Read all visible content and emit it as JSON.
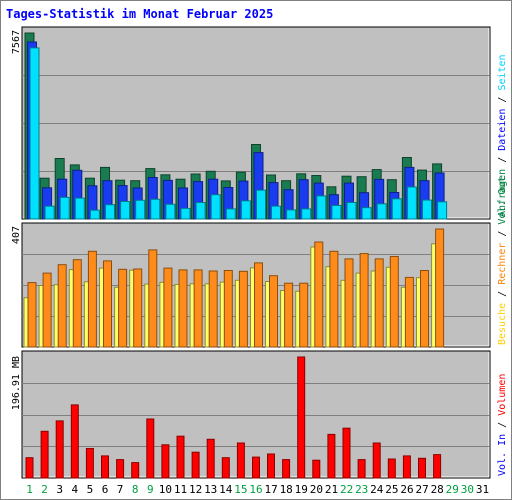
{
  "title": "Tages-Statistik im Monat Februar 2025",
  "colors": {
    "background": "#ffffff",
    "panel": "#c0c0c0",
    "title": "#0000ff",
    "hits": "#1a7a50",
    "files": "#1a3cf0",
    "pages": "#00e0ff",
    "visits": "#ffff66",
    "sites": "#ff8c1a",
    "kbytes": "#ff0000",
    "day_weekday": "#0000ff",
    "day_weekend": "#00a040"
  },
  "panel_labels": {
    "top_max": "7567",
    "mid_max": "407",
    "bottom_max": "196.91 MB"
  },
  "legend": {
    "right_top": [
      {
        "text": "Anfragen",
        "color": "#008040"
      },
      {
        "text": "Dateien",
        "color": "#0000ff"
      },
      {
        "text": "Seiten",
        "color": "#00d0ff"
      }
    ],
    "right_mid": [
      {
        "text": "Besuche",
        "color": "#ffd000"
      },
      {
        "text": "Rechner",
        "color": "#ff8000"
      },
      {
        "text": "Vol. Out",
        "color": "#008040"
      }
    ],
    "right_bottom": [
      {
        "text": "Vol. In",
        "color": "#0000ff"
      },
      {
        "text": "Volumen",
        "color": "#ff0000"
      }
    ],
    "separator": "/"
  },
  "chart_data": [
    {
      "type": "bar",
      "panel": "top",
      "ylim": [
        0,
        7567
      ],
      "x": [
        "1",
        "2",
        "3",
        "4",
        "5",
        "6",
        "7",
        "8",
        "9",
        "10",
        "11",
        "12",
        "13",
        "14",
        "15",
        "16",
        "17",
        "18",
        "19",
        "20",
        "21",
        "22",
        "23",
        "24",
        "25",
        "26",
        "27",
        "28",
        "29",
        "30",
        "31"
      ],
      "series": [
        {
          "name": "Anfragen",
          "values": [
            7567,
            1660,
            2460,
            2200,
            1660,
            2100,
            1580,
            1560,
            2050,
            1800,
            1620,
            1830,
            1940,
            1550,
            1910,
            3030,
            1790,
            1560,
            1840,
            1770,
            1310,
            1740,
            1720,
            2010,
            1600,
            2500,
            1990,
            2240,
            null,
            null,
            null
          ]
        },
        {
          "name": "Dateien",
          "values": [
            7200,
            1270,
            1620,
            1980,
            1350,
            1560,
            1360,
            1260,
            1690,
            1570,
            1260,
            1520,
            1620,
            1280,
            1540,
            2700,
            1480,
            1190,
            1600,
            1460,
            990,
            1460,
            1070,
            1610,
            1080,
            2100,
            1560,
            1870,
            null,
            null,
            null
          ]
        },
        {
          "name": "Seiten",
          "values": [
            6960,
            520,
            880,
            850,
            360,
            580,
            710,
            760,
            800,
            600,
            430,
            670,
            990,
            410,
            740,
            1170,
            520,
            370,
            410,
            940,
            550,
            670,
            460,
            620,
            820,
            1300,
            770,
            700,
            null,
            null,
            null
          ]
        }
      ]
    },
    {
      "type": "bar",
      "panel": "middle",
      "ylim": [
        0,
        407
      ],
      "x": [
        "1",
        "2",
        "3",
        "4",
        "5",
        "6",
        "7",
        "8",
        "9",
        "10",
        "11",
        "12",
        "13",
        "14",
        "15",
        "16",
        "17",
        "18",
        "19",
        "20",
        "21",
        "22",
        "23",
        "24",
        "25",
        "26",
        "27",
        "28",
        "29",
        "30",
        "31"
      ],
      "series": [
        {
          "name": "Besuche",
          "values": [
            170,
            212,
            215,
            267,
            225,
            272,
            206,
            265,
            217,
            223,
            216,
            218,
            218,
            224,
            230,
            273,
            226,
            195,
            192,
            345,
            277,
            230,
            255,
            262,
            275,
            206,
            239,
            356,
            null,
            null,
            null
          ]
        },
        {
          "name": "Rechner",
          "values": [
            222,
            255,
            284,
            301,
            330,
            297,
            268,
            269,
            335,
            272,
            266,
            266,
            262,
            264,
            261,
            290,
            246,
            220,
            220,
            362,
            330,
            304,
            322,
            304,
            312,
            240,
            264,
            407,
            null,
            null,
            null
          ]
        }
      ]
    },
    {
      "type": "bar",
      "panel": "bottom",
      "ylim": [
        0,
        196.91
      ],
      "x": [
        "1",
        "2",
        "3",
        "4",
        "5",
        "6",
        "7",
        "8",
        "9",
        "10",
        "11",
        "12",
        "13",
        "14",
        "15",
        "16",
        "17",
        "18",
        "19",
        "20",
        "21",
        "22",
        "23",
        "24",
        "25",
        "26",
        "27",
        "28",
        "29",
        "30",
        "31"
      ],
      "series": [
        {
          "name": "Volumen",
          "values": [
            33,
            76,
            93,
            119,
            48,
            36,
            30,
            25,
            96,
            54,
            68,
            42,
            63,
            33,
            57,
            34,
            39,
            30,
            196.91,
            29,
            71,
            81,
            30,
            57,
            31,
            36,
            32,
            38,
            null,
            null,
            null
          ]
        }
      ]
    }
  ],
  "days": [
    {
      "label": "1",
      "weekend": true
    },
    {
      "label": "2",
      "weekend": true
    },
    {
      "label": "3",
      "weekend": false
    },
    {
      "label": "4",
      "weekend": false
    },
    {
      "label": "5",
      "weekend": false
    },
    {
      "label": "6",
      "weekend": false
    },
    {
      "label": "7",
      "weekend": false
    },
    {
      "label": "8",
      "weekend": true
    },
    {
      "label": "9",
      "weekend": true
    },
    {
      "label": "10",
      "weekend": false
    },
    {
      "label": "11",
      "weekend": false
    },
    {
      "label": "12",
      "weekend": false
    },
    {
      "label": "13",
      "weekend": false
    },
    {
      "label": "14",
      "weekend": false
    },
    {
      "label": "15",
      "weekend": true
    },
    {
      "label": "16",
      "weekend": true
    },
    {
      "label": "17",
      "weekend": false
    },
    {
      "label": "18",
      "weekend": false
    },
    {
      "label": "19",
      "weekend": false
    },
    {
      "label": "20",
      "weekend": false
    },
    {
      "label": "21",
      "weekend": false
    },
    {
      "label": "22",
      "weekend": true
    },
    {
      "label": "23",
      "weekend": true
    },
    {
      "label": "24",
      "weekend": false
    },
    {
      "label": "25",
      "weekend": false
    },
    {
      "label": "26",
      "weekend": false
    },
    {
      "label": "27",
      "weekend": false
    },
    {
      "label": "28",
      "weekend": false
    },
    {
      "label": "29",
      "weekend": true
    },
    {
      "label": "30",
      "weekend": true
    },
    {
      "label": "31",
      "weekend": false
    }
  ]
}
